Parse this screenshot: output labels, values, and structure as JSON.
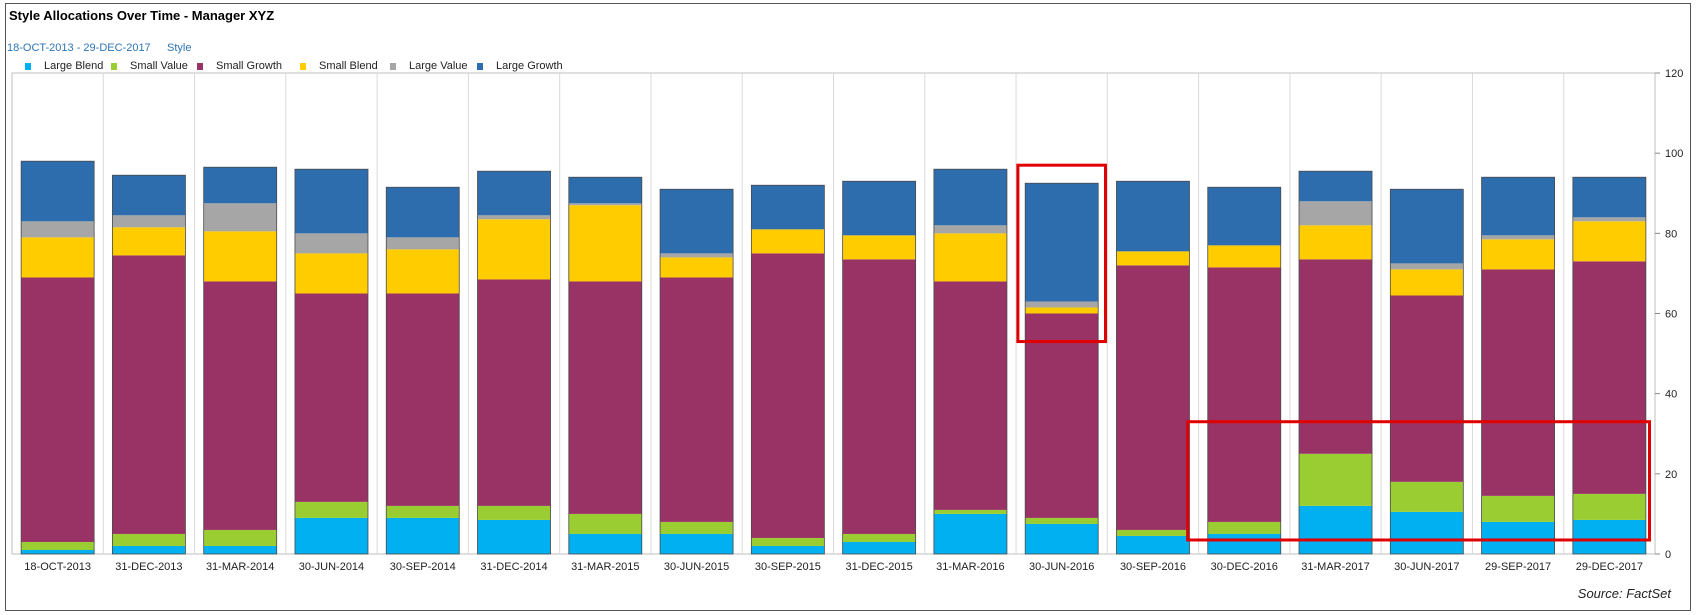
{
  "title": "Style Allocations Over Time - Manager XYZ",
  "date_range": "18-OCT-2013 - 29-DEC-2017",
  "style_label": "Style",
  "source": "Source: FactSet",
  "colors": {
    "Large Blend": "#00b0f0",
    "Small Value": "#9acd32",
    "Small Growth": "#993366",
    "Small Blend": "#ffcc00",
    "Large Value": "#a6a6a6",
    "Large Growth": "#2e6dad",
    "highlight": "#e00000"
  },
  "chart_data": {
    "type": "bar",
    "stacked": true,
    "categories": [
      "18-OCT-2013",
      "31-DEC-2013",
      "31-MAR-2014",
      "30-JUN-2014",
      "30-SEP-2014",
      "31-DEC-2014",
      "31-MAR-2015",
      "30-JUN-2015",
      "30-SEP-2015",
      "31-DEC-2015",
      "31-MAR-2016",
      "30-JUN-2016",
      "30-SEP-2016",
      "30-DEC-2016",
      "31-MAR-2017",
      "30-JUN-2017",
      "29-SEP-2017",
      "29-DEC-2017"
    ],
    "series": [
      {
        "name": "Large Blend",
        "values": [
          1,
          2,
          2,
          9,
          9,
          8.5,
          5,
          5,
          2,
          3,
          10,
          7.5,
          4.5,
          5,
          12,
          10.5,
          8,
          8.5
        ]
      },
      {
        "name": "Small Value",
        "values": [
          2,
          3,
          4,
          4,
          3,
          3.5,
          5,
          3,
          2,
          2,
          1,
          1.5,
          1.5,
          3,
          13,
          7.5,
          6.5,
          6.5
        ]
      },
      {
        "name": "Small Growth",
        "values": [
          66,
          69.5,
          62,
          52,
          53,
          56.5,
          58,
          61,
          71,
          68.5,
          57,
          51,
          66,
          63.5,
          48.5,
          46.5,
          56.5,
          58
        ]
      },
      {
        "name": "Small Blend",
        "values": [
          10,
          7,
          12.5,
          10,
          11,
          15,
          19,
          5,
          6,
          6,
          12,
          1.5,
          3.5,
          5.5,
          8.5,
          6.5,
          7.5,
          10
        ]
      },
      {
        "name": "Large Value",
        "values": [
          4,
          3,
          7,
          5,
          3,
          1,
          0.5,
          1,
          0,
          0,
          2,
          1.5,
          0,
          0,
          6,
          1.5,
          1,
          1
        ]
      },
      {
        "name": "Large Growth",
        "values": [
          15,
          10,
          9,
          16,
          12.5,
          11,
          6.5,
          16,
          11,
          13.5,
          14,
          29.5,
          17.5,
          14.5,
          7.5,
          18.5,
          14.5,
          10
        ]
      }
    ],
    "ylim": [
      0,
      120
    ],
    "yticks": [
      "0",
      "20",
      "40",
      "60",
      "80",
      "100",
      "120"
    ],
    "y_axis_position": "right",
    "grid": "vertical separators",
    "legend_position": "top-left",
    "annotations": [
      {
        "type": "highlight-box",
        "covers": "30-JUN-2016 Small Blend, Large Value, top of Small Growth and lower Large Growth (approx. 53-97)"
      },
      {
        "type": "highlight-box",
        "covers": "30-DEC-2016 through 29-DEC-2017, values approx. 3-33"
      }
    ]
  }
}
